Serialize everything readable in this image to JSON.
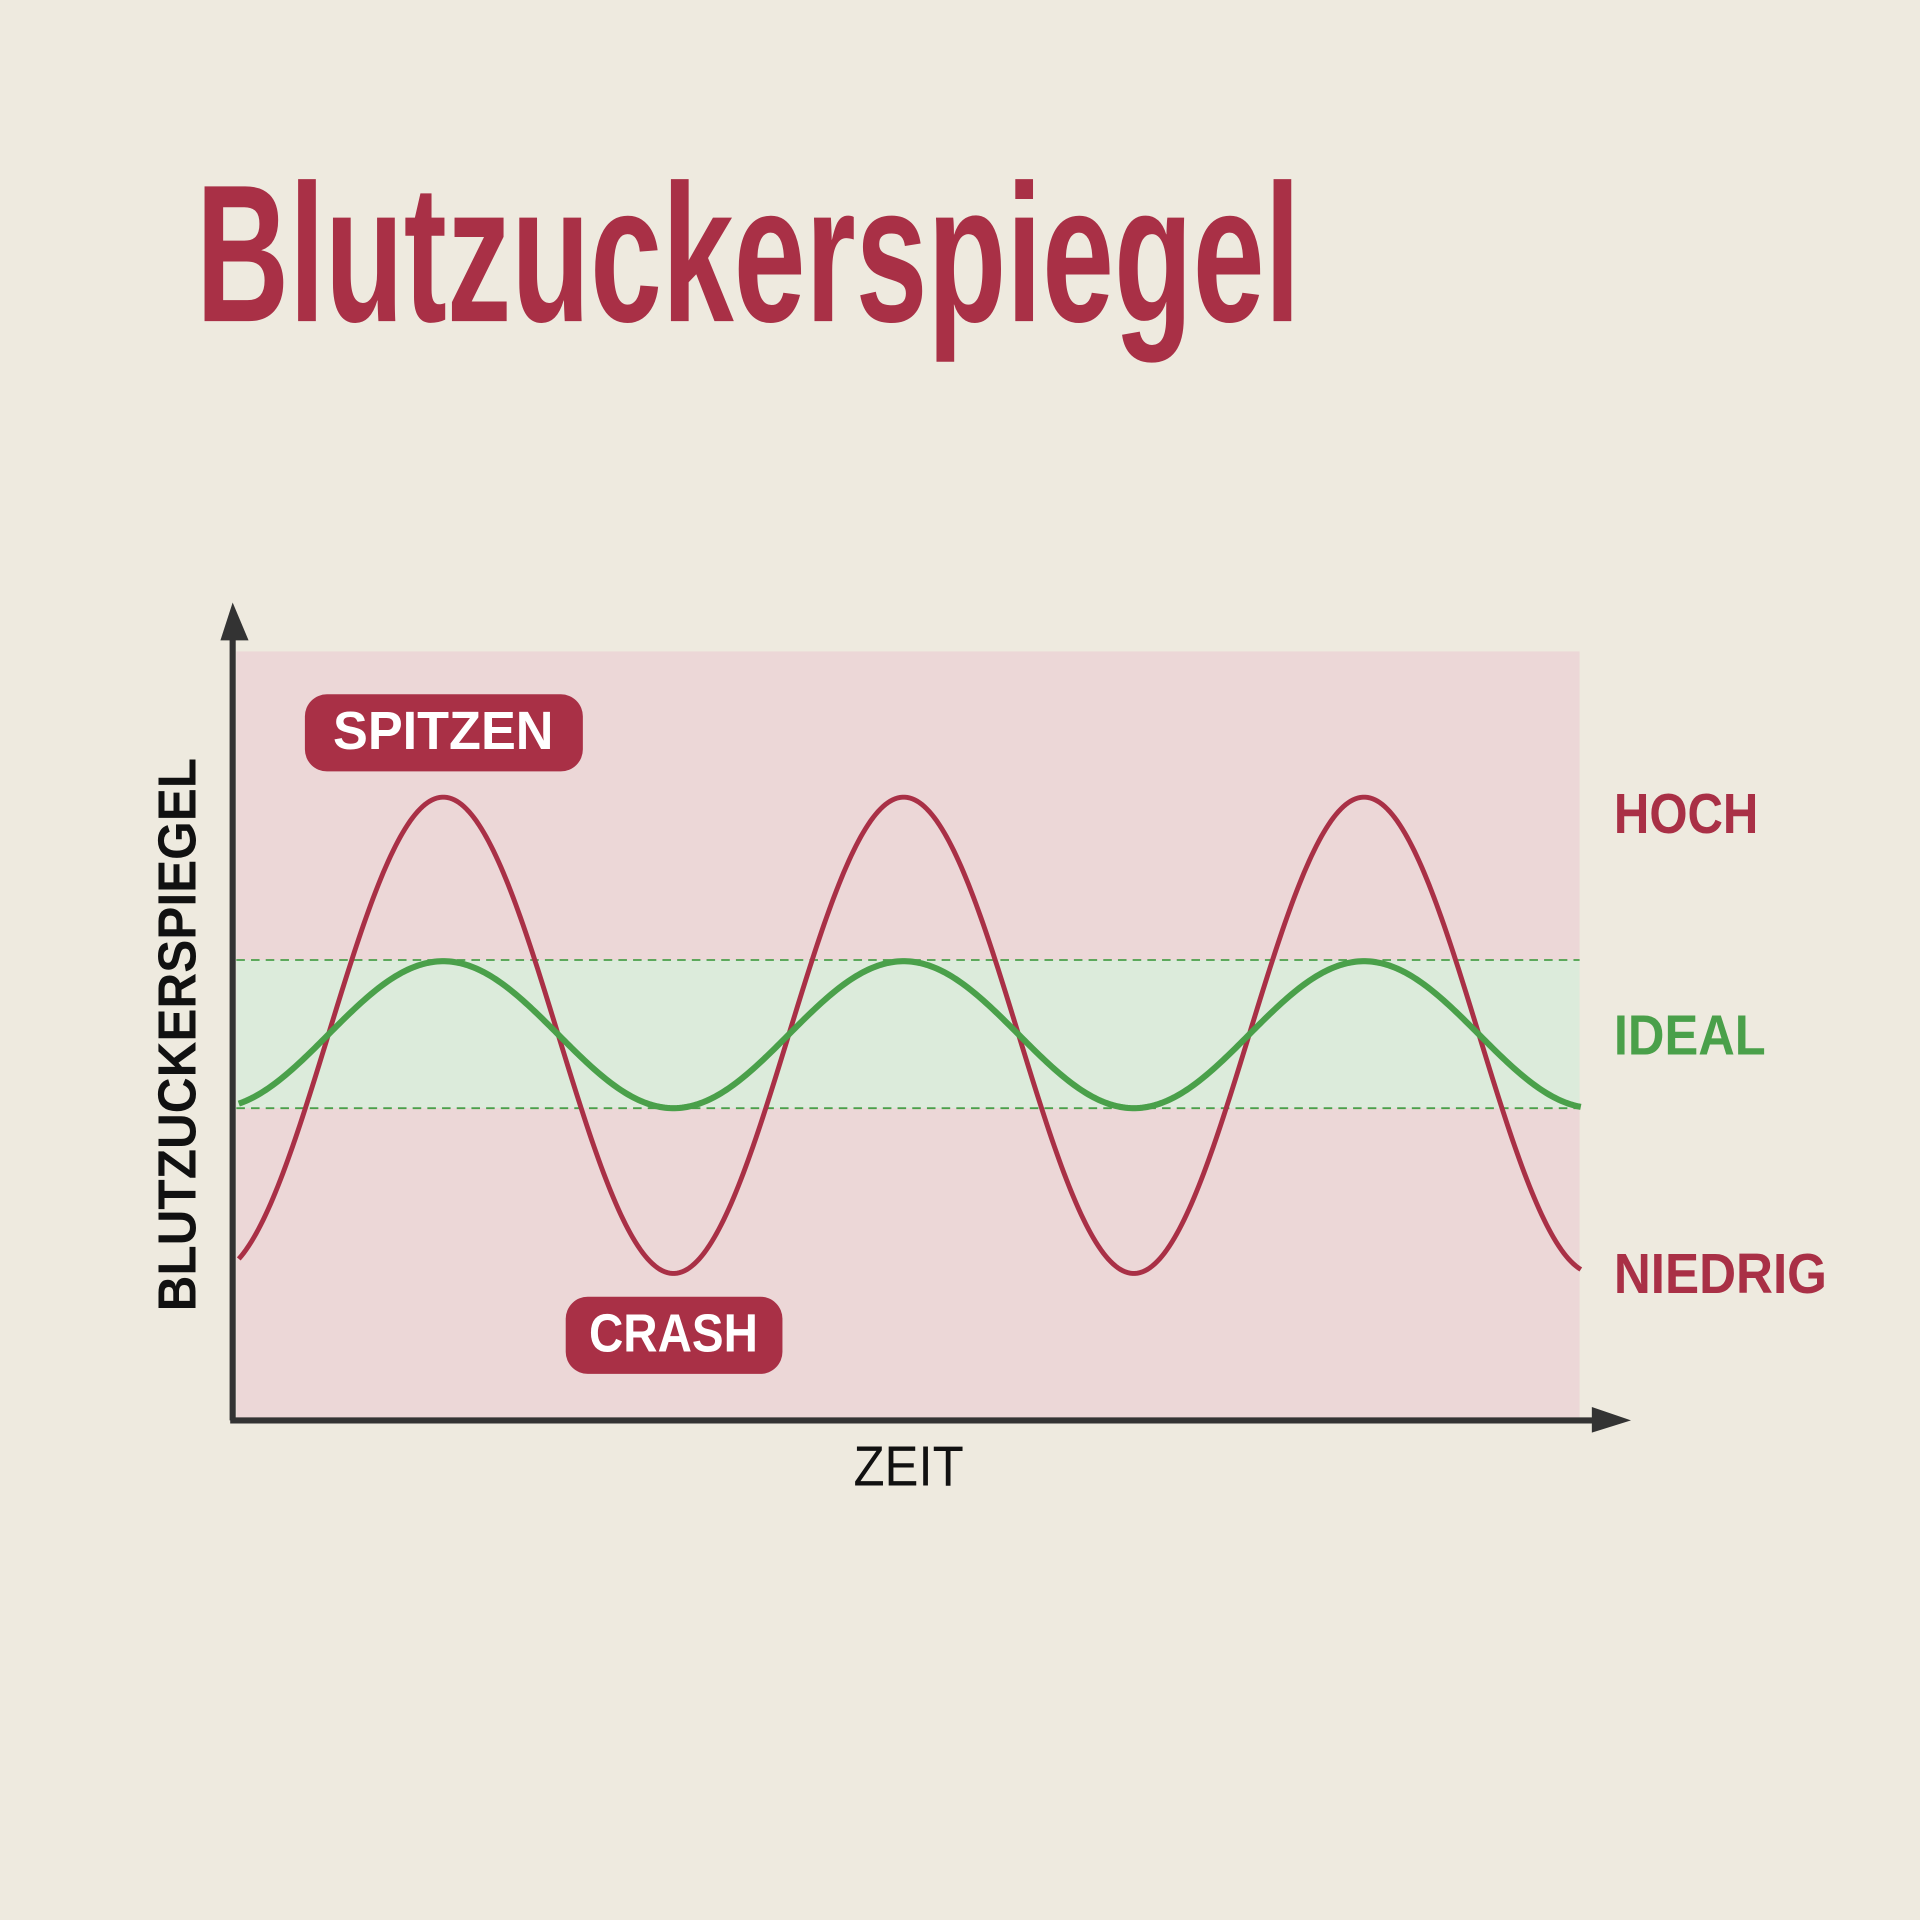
{
  "header": {
    "title": "Blutzuckerspiegel"
  },
  "diagram": {
    "y_axis_label": "BLUTZUCKERSPIEGEL",
    "x_axis_label": "ZEIT",
    "badges": {
      "peak": "SPITZEN",
      "crash": "CRASH"
    },
    "levels": {
      "high": "HOCH",
      "ideal": "IDEAL",
      "low": "NIEDRIG"
    }
  }
}
